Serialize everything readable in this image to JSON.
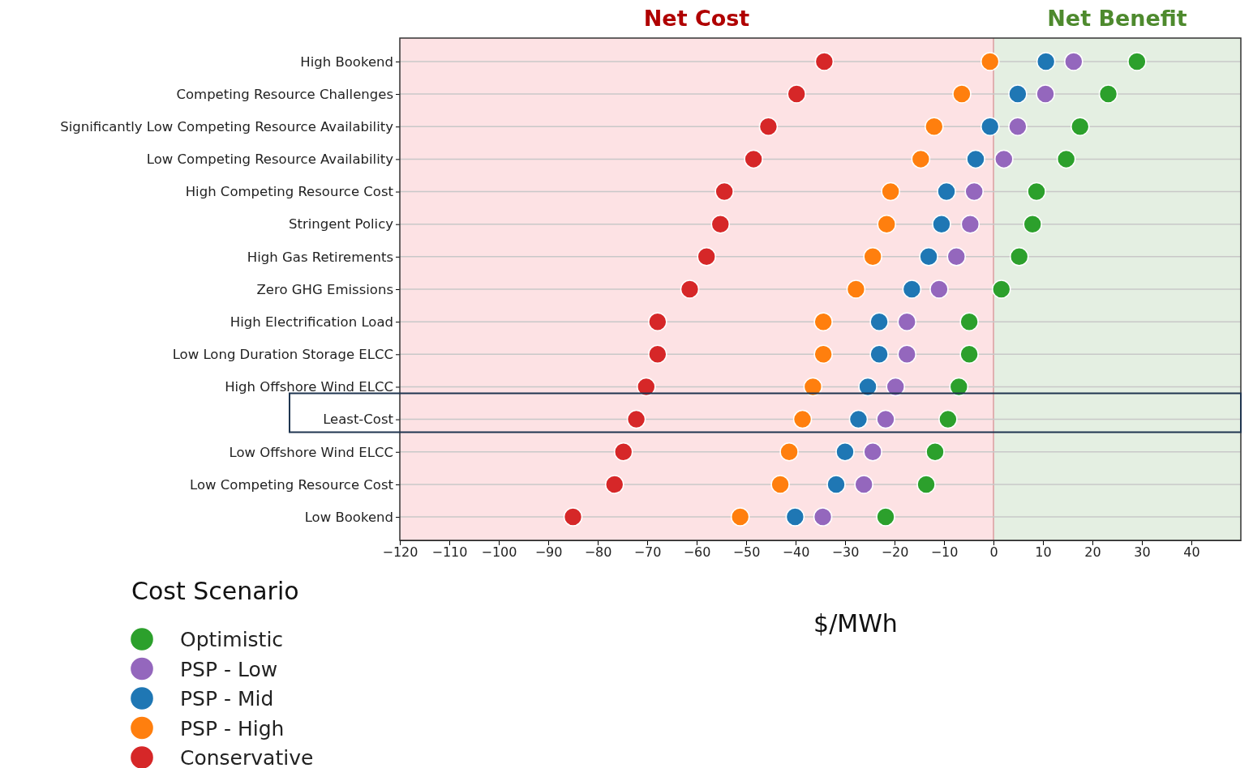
{
  "chart_data": {
    "type": "scatter",
    "xlabel": "$/MWh",
    "legend_title": "Cost Scenario",
    "legend": "bottom left",
    "grid": "y",
    "marker": "circle",
    "orientation": "horizontal",
    "categories": [
      "High Bookend",
      "Competing Resource Challenges",
      "Significantly Low Competing Resource Availability",
      "Low Competing Resource Availability",
      "High Competing Resource Cost",
      "Stringent Policy",
      "High Gas Retirements",
      "Zero GHG Emissions",
      "High Electrification Load",
      "Low Long Duration Storage ELCC",
      "High Offshore Wind ELCC",
      "Least-Cost",
      "Low Offshore Wind ELCC",
      "Low Competing Resource Cost",
      "Low Bookend"
    ],
    "xlim": [
      -120,
      50
    ],
    "xticks": [
      -120,
      -110,
      -100,
      -90,
      -80,
      -70,
      -60,
      -50,
      -40,
      -30,
      -20,
      -10,
      0,
      10,
      20,
      30,
      40
    ],
    "series": [
      {
        "name": "Optimistic",
        "color": "#2ca02c",
        "values": [
          29.0,
          23.2,
          17.5,
          14.7,
          8.7,
          7.9,
          5.2,
          1.6,
          -4.9,
          -4.9,
          -7.0,
          -9.2,
          -11.8,
          -13.6,
          -21.8
        ]
      },
      {
        "name": "PSP - Low",
        "color": "#9467bd",
        "values": [
          16.2,
          10.5,
          4.9,
          2.1,
          -3.9,
          -4.7,
          -7.5,
          -11.0,
          -17.5,
          -17.5,
          -19.8,
          -21.8,
          -24.4,
          -26.2,
          -34.5
        ]
      },
      {
        "name": "PSP - Mid",
        "color": "#1f77b4",
        "values": [
          10.6,
          4.9,
          -0.7,
          -3.6,
          -9.5,
          -10.5,
          -13.1,
          -16.5,
          -23.1,
          -23.1,
          -25.4,
          -27.3,
          -30.0,
          -31.8,
          -40.1
        ]
      },
      {
        "name": "PSP - High",
        "color": "#ff7f0e",
        "values": [
          -0.7,
          -6.4,
          -12.0,
          -14.7,
          -20.8,
          -21.6,
          -24.4,
          -27.8,
          -34.4,
          -34.4,
          -36.5,
          -38.6,
          -41.3,
          -43.1,
          -51.2
        ]
      },
      {
        "name": "Conservative",
        "color": "#d62728",
        "values": [
          -34.2,
          -39.8,
          -45.5,
          -48.5,
          -54.4,
          -55.2,
          -58.0,
          -61.4,
          -67.9,
          -67.9,
          -70.2,
          -72.2,
          -74.8,
          -76.6,
          -85.0
        ]
      }
    ],
    "ref_lines": [
      {
        "axis": "x",
        "value": 0,
        "color": "#e0b0b0"
      }
    ],
    "bands": [
      {
        "axis": "x",
        "from": -120,
        "to": 0,
        "label": "Net Cost",
        "color": "#fde2e4"
      },
      {
        "axis": "x",
        "from": 0,
        "to": 50,
        "label": "Net Benefit",
        "color": "#e4efe2"
      }
    ]
  }
}
